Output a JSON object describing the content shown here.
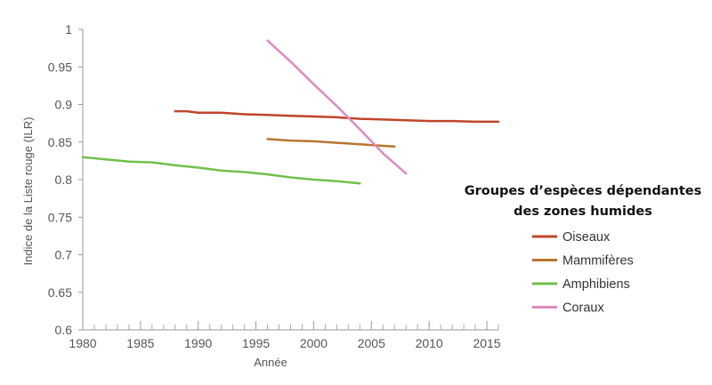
{
  "chart_data": {
    "type": "line",
    "xlabel": "Année",
    "ylabel": "Indice de la Liste rouge (ILR)",
    "xlim": [
      1980,
      2016
    ],
    "ylim": [
      0.6,
      1.0
    ],
    "x_ticks": [
      1980,
      1985,
      1990,
      1995,
      2000,
      2005,
      2010,
      2015
    ],
    "y_ticks": [
      "0.6",
      "0.65",
      "0.7",
      "0.75",
      "0.8",
      "0.85",
      "0.9",
      "0.95",
      "1"
    ],
    "grid": false,
    "legend": {
      "title_lines": [
        "Groupes d’espèces dépendantes",
        "des zones humides"
      ],
      "position": "right"
    },
    "series": [
      {
        "name": "Oiseaux",
        "color": "#c0452b",
        "x": [
          1988,
          1989,
          1990,
          1992,
          1994,
          1996,
          1998,
          2000,
          2002,
          2004,
          2006,
          2008,
          2010,
          2012,
          2014,
          2016
        ],
        "values": [
          0.891,
          0.891,
          0.889,
          0.889,
          0.887,
          0.886,
          0.885,
          0.884,
          0.883,
          0.881,
          0.88,
          0.879,
          0.878,
          0.878,
          0.877,
          0.877
        ]
      },
      {
        "name": "Mammifères",
        "color": "#b8762e",
        "x": [
          1996,
          1998,
          2000,
          2002,
          2004,
          2006,
          2007
        ],
        "values": [
          0.854,
          0.852,
          0.851,
          0.849,
          0.847,
          0.845,
          0.844
        ]
      },
      {
        "name": "Amphibiens",
        "color": "#72c04a",
        "x": [
          1980,
          1982,
          1984,
          1986,
          1988,
          1990,
          1992,
          1994,
          1996,
          1998,
          2000,
          2002,
          2004
        ],
        "values": [
          0.83,
          0.827,
          0.824,
          0.823,
          0.819,
          0.816,
          0.812,
          0.81,
          0.807,
          0.803,
          0.8,
          0.798,
          0.795
        ]
      },
      {
        "name": "Coraux",
        "color": "#e08ac0",
        "x": [
          1996,
          1998,
          2000,
          2002,
          2004,
          2006,
          2008
        ],
        "values": [
          0.985,
          0.957,
          0.927,
          0.898,
          0.867,
          0.835,
          0.808
        ]
      }
    ]
  }
}
